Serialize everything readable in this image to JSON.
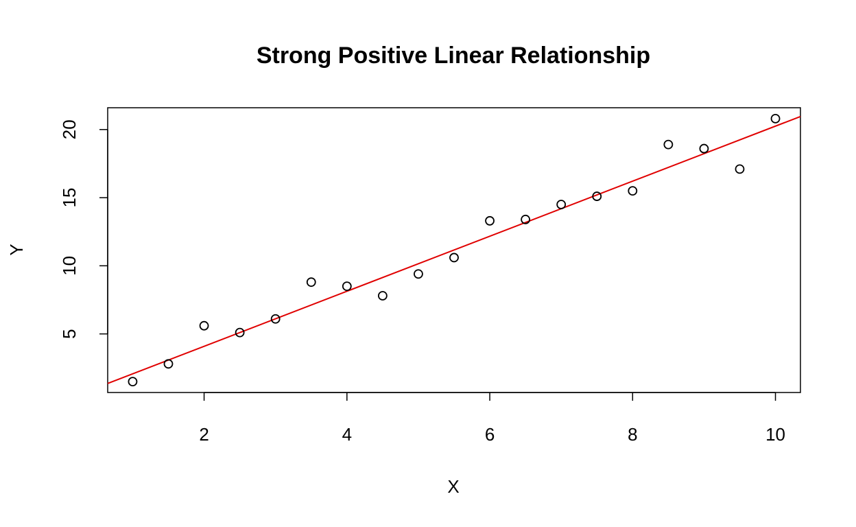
{
  "chart_data": {
    "type": "scatter",
    "title": "Strong Positive Linear Relationship",
    "xlabel": "X",
    "ylabel": "Y",
    "xlim": [
      0.65,
      10.35
    ],
    "ylim": [
      0.7,
      21.6
    ],
    "xticks": [
      2,
      4,
      6,
      8,
      10
    ],
    "yticks": [
      5,
      10,
      15,
      20
    ],
    "grid": false,
    "legend": "none",
    "points": [
      {
        "x": 1.0,
        "y": 1.5
      },
      {
        "x": 1.5,
        "y": 2.8
      },
      {
        "x": 2.0,
        "y": 5.6
      },
      {
        "x": 2.5,
        "y": 5.1
      },
      {
        "x": 3.0,
        "y": 6.1
      },
      {
        "x": 3.5,
        "y": 8.8
      },
      {
        "x": 4.0,
        "y": 8.5
      },
      {
        "x": 4.5,
        "y": 7.8
      },
      {
        "x": 5.0,
        "y": 9.4
      },
      {
        "x": 5.5,
        "y": 10.6
      },
      {
        "x": 6.0,
        "y": 13.3
      },
      {
        "x": 6.5,
        "y": 13.4
      },
      {
        "x": 7.0,
        "y": 14.5
      },
      {
        "x": 7.5,
        "y": 15.1
      },
      {
        "x": 8.0,
        "y": 15.5
      },
      {
        "x": 8.5,
        "y": 18.9
      },
      {
        "x": 9.0,
        "y": 18.6
      },
      {
        "x": 9.5,
        "y": 17.1
      },
      {
        "x": 10.0,
        "y": 20.8
      }
    ],
    "regression_line": {
      "intercept": 0.05,
      "slope": 2.02,
      "color": "#e00000"
    },
    "point_color": "#000000"
  }
}
